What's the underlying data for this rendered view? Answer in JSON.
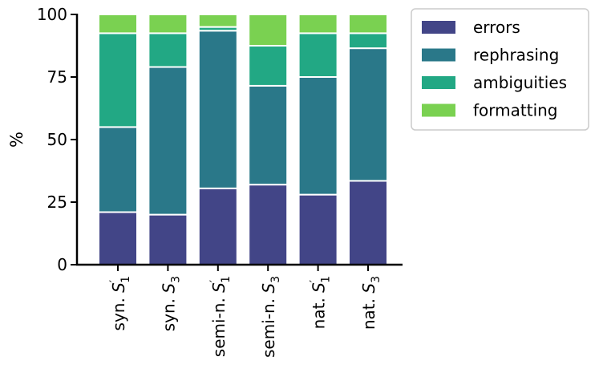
{
  "chart_data": {
    "type": "bar",
    "stacked": true,
    "ylabel": "%",
    "xlabel": "",
    "ylim": [
      0,
      100
    ],
    "yticks": [
      0,
      25,
      50,
      75,
      100
    ],
    "grid": false,
    "legend_position": "outside-top-right",
    "categories": [
      {
        "prefix": "syn.",
        "sym": "S",
        "sub": "1",
        "prime": true
      },
      {
        "prefix": "syn.",
        "sym": "S",
        "sub": "3",
        "prime": false
      },
      {
        "prefix": "semi-n.",
        "sym": "S",
        "sub": "1",
        "prime": true
      },
      {
        "prefix": "semi-n.",
        "sym": "S",
        "sub": "3",
        "prime": false
      },
      {
        "prefix": "nat.",
        "sym": "S",
        "sub": "1",
        "prime": true
      },
      {
        "prefix": "nat.",
        "sym": "S",
        "sub": "3",
        "prime": false
      }
    ],
    "series": [
      {
        "name": "errors",
        "color": "#424587",
        "values": [
          21,
          20,
          30.5,
          32,
          28,
          33.5
        ]
      },
      {
        "name": "rephrasing",
        "color": "#2a7889",
        "values": [
          34,
          59,
          63,
          39.5,
          47,
          53
        ]
      },
      {
        "name": "ambiguities",
        "color": "#22a884",
        "values": [
          37.5,
          13.5,
          1.5,
          16,
          17.5,
          6
        ]
      },
      {
        "name": "formatting",
        "color": "#7ad151",
        "values": [
          7.5,
          7.5,
          5,
          12.5,
          7.5,
          7.5
        ]
      }
    ]
  }
}
